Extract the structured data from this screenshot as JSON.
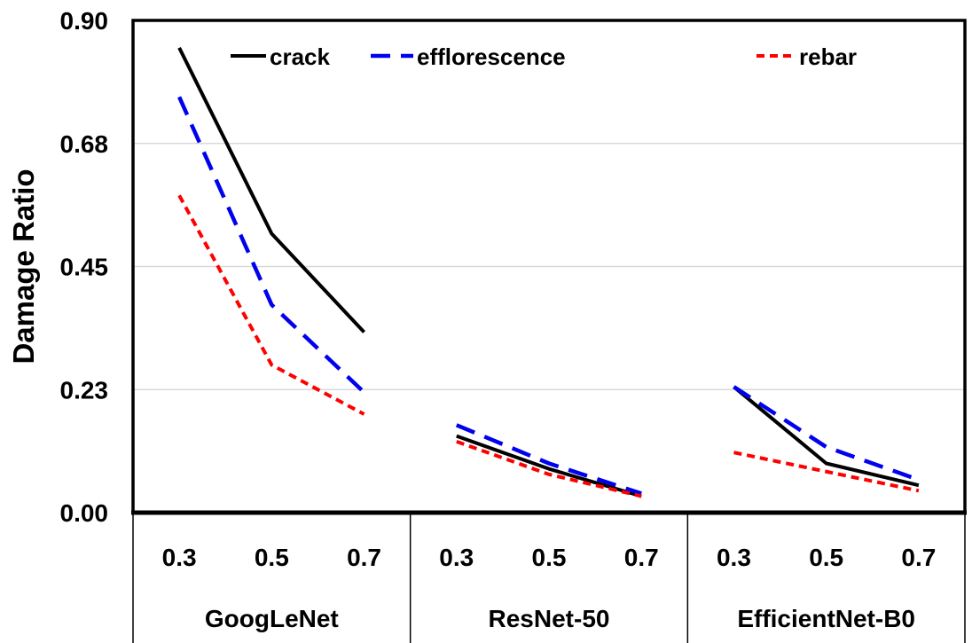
{
  "chart_data": {
    "type": "line",
    "title": "",
    "ylabel": "Damage Ratio",
    "xlabel": "",
    "ylim": [
      0,
      0.9
    ],
    "grid": true,
    "legend_position": "top-inside",
    "y_ticks": [
      {
        "label": "0.00",
        "value": 0
      },
      {
        "label": "0.23",
        "value": 0.225
      },
      {
        "label": "0.45",
        "value": 0.45
      },
      {
        "label": "0.68",
        "value": 0.675
      },
      {
        "label": "0.90",
        "value": 0.9
      }
    ],
    "groups": [
      {
        "label": "GoogLeNet",
        "x_ticks": [
          "0.3",
          "0.5",
          "0.7"
        ]
      },
      {
        "label": "ResNet-50",
        "x_ticks": [
          "0.3",
          "0.5",
          "0.7"
        ]
      },
      {
        "label": "EfficientNet-B0",
        "x_ticks": [
          "0.3",
          "0.5",
          "0.7"
        ]
      }
    ],
    "series": [
      {
        "name": "crack",
        "color": "#000000",
        "style": "solid",
        "values": [
          [
            0.85,
            0.51,
            0.33
          ],
          [
            0.14,
            0.08,
            0.03
          ],
          [
            0.23,
            0.09,
            0.05
          ]
        ]
      },
      {
        "name": "efflorescence",
        "color": "#0000EE",
        "style": "long-dash",
        "values": [
          [
            0.76,
            0.38,
            0.22
          ],
          [
            0.16,
            0.09,
            0.035
          ],
          [
            0.23,
            0.12,
            0.06
          ]
        ]
      },
      {
        "name": "rebar",
        "color": "#FF0000",
        "style": "short-dash",
        "values": [
          [
            0.58,
            0.27,
            0.18
          ],
          [
            0.13,
            0.07,
            0.03
          ],
          [
            0.11,
            0.075,
            0.04
          ]
        ]
      }
    ]
  },
  "colors": {
    "background": "#FFFFFF",
    "grid": "#D9D9D9",
    "axis": "#000000",
    "text": "#000000"
  }
}
